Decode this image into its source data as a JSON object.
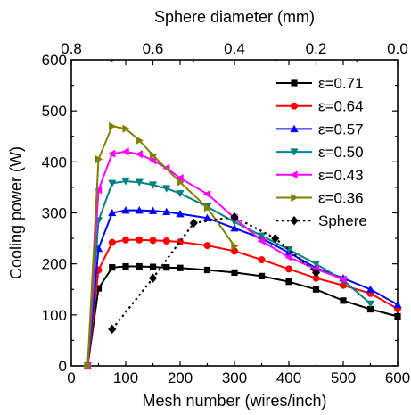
{
  "chart_data": {
    "type": "line",
    "xlabel": "Mesh number (wires/inch)",
    "ylabel": "Cooling power (W)",
    "x2label": "Sphere diameter (mm)",
    "xlim": [
      0,
      600
    ],
    "ylim": [
      0,
      600
    ],
    "x2lim": [
      0.8,
      0.0
    ],
    "xticks": [
      0,
      100,
      200,
      300,
      400,
      500,
      600
    ],
    "yticks": [
      0,
      100,
      200,
      300,
      400,
      500,
      600
    ],
    "x2ticks": [
      0.8,
      0.6,
      0.4,
      0.2,
      0.0
    ],
    "x_tick_labels": [
      "0",
      "100",
      "200",
      "300",
      "400",
      "500",
      "600"
    ],
    "y_tick_labels": [
      "0",
      "100",
      "200",
      "300",
      "400",
      "500",
      "600"
    ],
    "x2_tick_labels": [
      "0.8",
      "0.6",
      "0.4",
      "0.2",
      "0.0"
    ],
    "legend_position": "top-right",
    "series": [
      {
        "name": "ε=0.71",
        "color": "#000000",
        "marker": "square",
        "dash": "solid",
        "x": [
          30,
          50,
          75,
          100,
          125,
          150,
          175,
          200,
          250,
          300,
          350,
          400,
          450,
          500,
          550,
          600
        ],
        "y": [
          0,
          152,
          193,
          195,
          195,
          194,
          193,
          192,
          188,
          183,
          176,
          165,
          150,
          128,
          111,
          97
        ]
      },
      {
        "name": "ε=0.64",
        "color": "#ff0000",
        "marker": "circle",
        "dash": "solid",
        "x": [
          30,
          50,
          75,
          100,
          125,
          150,
          175,
          200,
          250,
          300,
          350,
          400,
          450,
          500,
          550,
          600
        ],
        "y": [
          0,
          188,
          242,
          247,
          247,
          246,
          245,
          243,
          236,
          225,
          208,
          190,
          172,
          158,
          142,
          112
        ]
      },
      {
        "name": "ε=0.57",
        "color": "#0000ff",
        "marker": "triangle-up",
        "dash": "solid",
        "x": [
          30,
          50,
          75,
          100,
          125,
          150,
          175,
          200,
          250,
          300,
          350,
          400,
          450,
          500,
          550,
          600
        ],
        "y": [
          0,
          230,
          300,
          305,
          305,
          304,
          302,
          298,
          290,
          270,
          250,
          222,
          192,
          172,
          150,
          120
        ]
      },
      {
        "name": "ε=0.50",
        "color": "#008080",
        "marker": "triangle-down",
        "dash": "solid",
        "x": [
          30,
          50,
          75,
          100,
          125,
          150,
          175,
          200,
          250,
          300,
          350,
          400,
          450,
          500,
          550
        ],
        "y": [
          0,
          285,
          358,
          362,
          360,
          355,
          348,
          338,
          312,
          282,
          255,
          228,
          200,
          168,
          122
        ]
      },
      {
        "name": "ε=0.43",
        "color": "#ff00ff",
        "marker": "triangle-left",
        "dash": "solid",
        "x": [
          30,
          50,
          75,
          100,
          125,
          150,
          175,
          200,
          250,
          300,
          350,
          400,
          450,
          500
        ],
        "y": [
          0,
          345,
          416,
          420,
          415,
          403,
          388,
          368,
          337,
          290,
          245,
          213,
          190,
          170
        ]
      },
      {
        "name": "ε=0.36",
        "color": "#808000",
        "marker": "triangle-right",
        "dash": "solid",
        "x": [
          30,
          50,
          75,
          100,
          125,
          150,
          200,
          250,
          300
        ],
        "y": [
          0,
          405,
          470,
          465,
          442,
          413,
          360,
          310,
          235
        ]
      },
      {
        "name": "Sphere",
        "color": "#000000",
        "marker": "diamond",
        "dash": "dotted",
        "x": [
          75,
          150,
          225,
          300,
          375,
          450
        ],
        "y": [
          72,
          172,
          280,
          292,
          250,
          183
        ]
      }
    ]
  }
}
